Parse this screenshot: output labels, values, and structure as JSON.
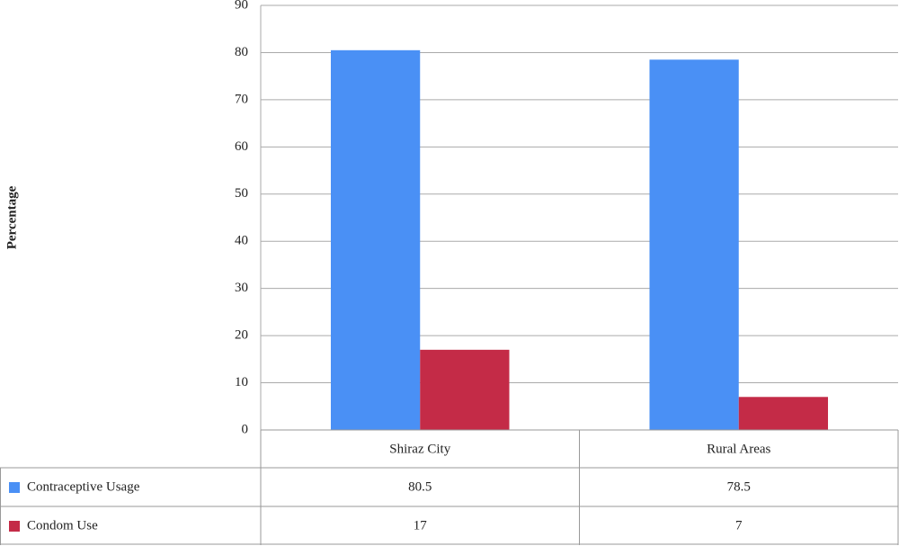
{
  "chart_data": {
    "type": "bar",
    "y_label": "Percentage",
    "categories": [
      "Shiraz City",
      "Rural Areas"
    ],
    "series": [
      {
        "name": "Contraceptive Usage",
        "color": "#4a90f5",
        "values": [
          80.5,
          78.5
        ]
      },
      {
        "name": "Condom Use",
        "color": "#c42b47",
        "values": [
          17,
          7
        ]
      }
    ],
    "ylim": [
      0,
      90
    ],
    "yticks": [
      0,
      10,
      20,
      30,
      40,
      50,
      60,
      70,
      80,
      90
    ],
    "grid": true
  }
}
